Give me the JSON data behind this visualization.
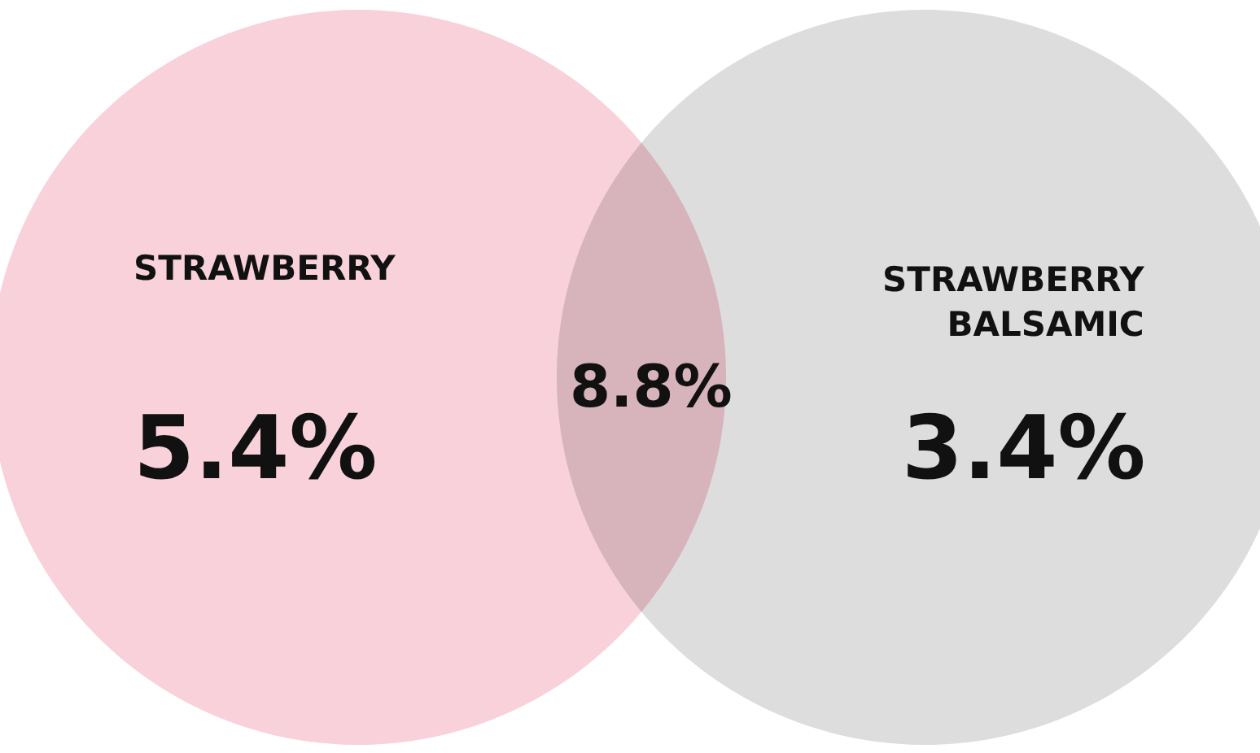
{
  "chart_data": {
    "type": "other",
    "categories": [
      "STRAWBERRY",
      "STRAWBERRY\nBALSAMIC",
      null
    ],
    "values": [
      5.4,
      3.4,
      8.8
    ],
    "value_labels": [
      "5.4%",
      "3.4%",
      "8.8%"
    ],
    "colors": [
      "#f8d1da",
      "#dddddd",
      "#d7b3bb"
    ]
  }
}
